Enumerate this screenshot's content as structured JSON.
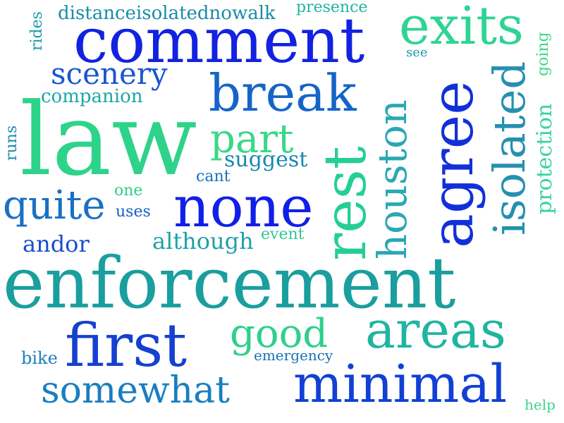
{
  "words": [
    {
      "id": "enforcement",
      "text": "enforcement",
      "color": "#1a9e9e"
    },
    {
      "id": "law",
      "text": "law",
      "color": "#2ed38a"
    },
    {
      "id": "comment",
      "text": "comment",
      "color": "#1222e0"
    },
    {
      "id": "agree",
      "text": "agree",
      "color": "#1230d8"
    },
    {
      "id": "rest",
      "text": "rest",
      "color": "#24cf95"
    },
    {
      "id": "minimal",
      "text": "minimal",
      "color": "#1240d4"
    },
    {
      "id": "first",
      "text": "first",
      "color": "#1540d0"
    },
    {
      "id": "none",
      "text": "none",
      "color": "#1020e8"
    },
    {
      "id": "break",
      "text": "break",
      "color": "#1565c8"
    },
    {
      "id": "areas",
      "text": "areas",
      "color": "#20b5a0"
    },
    {
      "id": "exits",
      "text": "exits",
      "color": "#2ed495"
    },
    {
      "id": "houston",
      "text": "houston",
      "color": "#2aa8b4"
    },
    {
      "id": "isolated-vertical",
      "text": "isolated",
      "color": "#2590b0"
    },
    {
      "id": "somewhat",
      "text": "somewhat",
      "color": "#1a7ec0"
    },
    {
      "id": "quite",
      "text": "quite",
      "color": "#1a70c4"
    },
    {
      "id": "good",
      "text": "good",
      "color": "#2ed08a"
    },
    {
      "id": "part",
      "text": "part",
      "color": "#3ad888"
    },
    {
      "id": "scenery",
      "text": "scenery",
      "color": "#1a55d2"
    },
    {
      "id": "protection",
      "text": "protection",
      "color": "#38d49a"
    },
    {
      "id": "suggest",
      "text": "suggest",
      "color": "#1888b0"
    },
    {
      "id": "although",
      "text": "although",
      "color": "#1da2a8"
    },
    {
      "id": "andor",
      "text": "andor",
      "color": "#1850c8"
    },
    {
      "id": "companion",
      "text": "companion",
      "color": "#1da5a8"
    },
    {
      "id": "distanceisolatednowalk",
      "text": "distanceisolatednowalk",
      "color": "#1a8caa"
    },
    {
      "id": "presence",
      "text": "presence",
      "color": "#22b49e"
    },
    {
      "id": "going",
      "text": "going",
      "color": "#3ad888"
    },
    {
      "id": "rides",
      "text": "rides",
      "color": "#1a9ca8"
    },
    {
      "id": "runs",
      "text": "runs",
      "color": "#1a8cb0"
    },
    {
      "id": "cant",
      "text": "cant",
      "color": "#1870b8"
    },
    {
      "id": "one",
      "text": "one",
      "color": "#2ed08a"
    },
    {
      "id": "uses",
      "text": "uses",
      "color": "#1660c4"
    },
    {
      "id": "event",
      "text": "event",
      "color": "#30c894"
    },
    {
      "id": "emergency",
      "text": "emergency",
      "color": "#1870b8"
    },
    {
      "id": "bike",
      "text": "bike",
      "color": "#1a7ebc"
    },
    {
      "id": "help",
      "text": "help",
      "color": "#3ad888"
    },
    {
      "id": "see",
      "text": "see",
      "color": "#1a9aa8"
    }
  ]
}
